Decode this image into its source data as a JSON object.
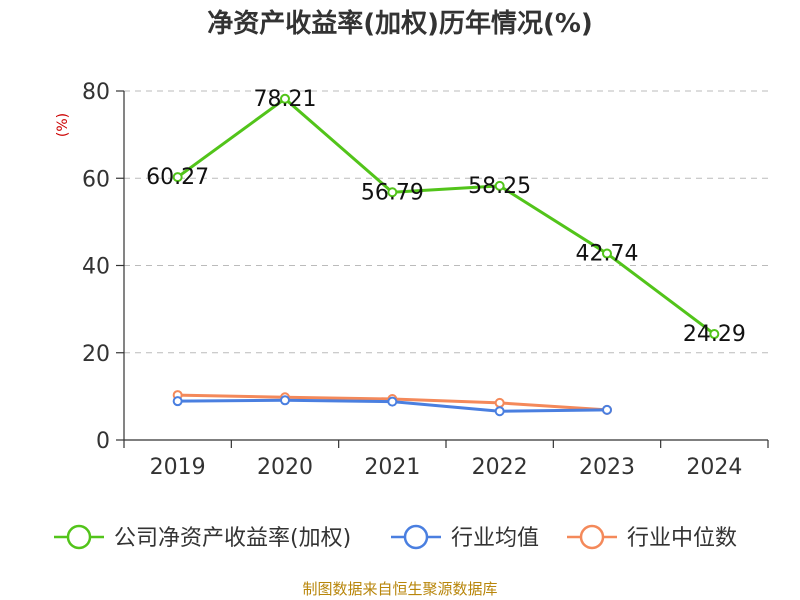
{
  "chart_data": {
    "type": "line",
    "title": "净资产收益率(加权)历年情况(%)",
    "ylabel": "(%)",
    "xlabel": "",
    "categories": [
      "2019",
      "2020",
      "2021",
      "2022",
      "2023",
      "2024"
    ],
    "ylim": [
      0,
      80
    ],
    "yticks": [
      0,
      20,
      40,
      60,
      80
    ],
    "grid": true,
    "legend_position": "bottom",
    "series": [
      {
        "name": "公司净资产收益率(加权)",
        "color": "#52c41a",
        "values": [
          60.27,
          78.21,
          56.79,
          58.25,
          42.74,
          24.29
        ],
        "labels": [
          "60.27",
          "78.21",
          "56.79",
          "58.25",
          "42.74",
          "24.29"
        ]
      },
      {
        "name": "行业均值",
        "color": "#4a7fe0",
        "values": [
          8.9,
          9.1,
          8.8,
          6.6,
          6.9,
          null
        ]
      },
      {
        "name": "行业中位数",
        "color": "#f4895a",
        "values": [
          10.3,
          9.8,
          9.4,
          8.5,
          6.9,
          null
        ]
      }
    ],
    "source": "制图数据来自恒生聚源数据库"
  }
}
